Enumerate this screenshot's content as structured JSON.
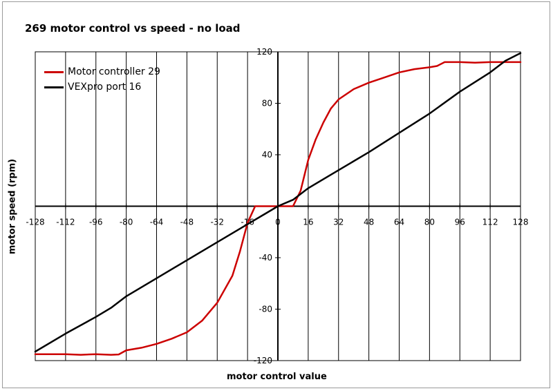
{
  "chart_data": {
    "type": "line",
    "title": "269 motor control vs speed - no load",
    "xlabel": "motor control value",
    "ylabel": "motor speed (rpm)",
    "xlim": [
      -128,
      128
    ],
    "ylim": [
      -120,
      120
    ],
    "x_ticks": [
      -128,
      -112,
      -96,
      -80,
      -64,
      -48,
      -32,
      -16,
      0,
      16,
      32,
      48,
      64,
      80,
      96,
      112,
      128
    ],
    "y_ticks": [
      -120,
      -80,
      -40,
      0,
      40,
      80,
      120
    ],
    "grid": "vertical",
    "legend_position": "top-left",
    "series": [
      {
        "name": "Motor controller 29",
        "color": "#cc0000",
        "points": [
          [
            -128,
            -115
          ],
          [
            -120,
            -115
          ],
          [
            -112,
            -115
          ],
          [
            -104,
            -115.5
          ],
          [
            -96,
            -115
          ],
          [
            -88,
            -115.5
          ],
          [
            -84,
            -115.2
          ],
          [
            -80,
            -112
          ],
          [
            -72,
            -110
          ],
          [
            -64,
            -107
          ],
          [
            -56,
            -103
          ],
          [
            -48,
            -98
          ],
          [
            -40,
            -89
          ],
          [
            -32,
            -75
          ],
          [
            -24,
            -54
          ],
          [
            -20,
            -35
          ],
          [
            -16,
            -13
          ],
          [
            -12,
            0
          ],
          [
            0,
            0
          ],
          [
            8,
            0
          ],
          [
            12,
            12
          ],
          [
            16,
            36
          ],
          [
            20,
            52
          ],
          [
            24,
            65
          ],
          [
            28,
            76
          ],
          [
            32,
            83
          ],
          [
            40,
            91
          ],
          [
            48,
            96
          ],
          [
            56,
            100
          ],
          [
            64,
            104
          ],
          [
            72,
            106.5
          ],
          [
            80,
            108
          ],
          [
            84,
            109
          ],
          [
            88,
            112
          ],
          [
            96,
            112
          ],
          [
            104,
            111.5
          ],
          [
            112,
            112
          ],
          [
            120,
            112
          ],
          [
            128,
            112
          ]
        ]
      },
      {
        "name": "VEXpro port 16",
        "color": "#000000",
        "points": [
          [
            -128,
            -113
          ],
          [
            -112,
            -99
          ],
          [
            -96,
            -86
          ],
          [
            -88,
            -79
          ],
          [
            -80,
            -70
          ],
          [
            -64,
            -56
          ],
          [
            -48,
            -42
          ],
          [
            -32,
            -28
          ],
          [
            -16,
            -14
          ],
          [
            0,
            0
          ],
          [
            8,
            5
          ],
          [
            16,
            14
          ],
          [
            32,
            28
          ],
          [
            48,
            42
          ],
          [
            64,
            57
          ],
          [
            80,
            72
          ],
          [
            96,
            89
          ],
          [
            112,
            104
          ],
          [
            120,
            113
          ],
          [
            128,
            119
          ]
        ]
      }
    ]
  }
}
